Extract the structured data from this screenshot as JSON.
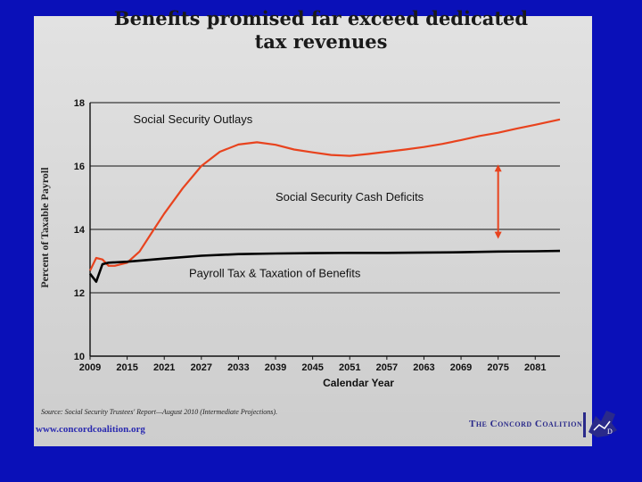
{
  "page": {
    "title_lines": [
      "Benefits promised far exceed dedicated",
      "tax revenues"
    ],
    "source": "Source:  Social Security Trustees' Report—August 2010 (Intermediate Projections).",
    "website": "www.concordcoalition.org",
    "organization": "The Concord Coalition",
    "colors": {
      "background": "#0a10b8",
      "outlays": "#e8431e",
      "revenue": "#000000",
      "arrow": "#e8431e"
    }
  },
  "chart_data": {
    "type": "line",
    "title": "Benefits promised far exceed dedicated tax revenues",
    "xlabel": "Calendar Year",
    "ylabel": "Percent of Taxable Payroll",
    "xlim": [
      2009,
      2085
    ],
    "ylim": [
      10,
      18
    ],
    "xticks": [
      2009,
      2015,
      2021,
      2027,
      2033,
      2039,
      2045,
      2051,
      2057,
      2063,
      2069,
      2075,
      2081
    ],
    "yticks": [
      10,
      12,
      14,
      16,
      18
    ],
    "grid": "horizontal",
    "series": [
      {
        "name": "Social Security Outlays",
        "x": [
          2009,
          2010,
          2011,
          2012,
          2013,
          2015,
          2017,
          2019,
          2021,
          2024,
          2027,
          2030,
          2033,
          2036,
          2039,
          2042,
          2045,
          2048,
          2051,
          2054,
          2057,
          2060,
          2063,
          2066,
          2069,
          2072,
          2075,
          2078,
          2081,
          2085
        ],
        "y": [
          12.7,
          13.1,
          13.05,
          12.85,
          12.85,
          12.95,
          13.3,
          13.9,
          14.5,
          15.3,
          16.0,
          16.45,
          16.68,
          16.75,
          16.67,
          16.52,
          16.43,
          16.35,
          16.32,
          16.38,
          16.45,
          16.52,
          16.6,
          16.7,
          16.82,
          16.95,
          17.05,
          17.18,
          17.3,
          17.47
        ]
      },
      {
        "name": "Payroll Tax & Taxation of Benefits",
        "x": [
          2009,
          2010,
          2011,
          2012,
          2015,
          2021,
          2027,
          2033,
          2039,
          2045,
          2051,
          2057,
          2063,
          2069,
          2075,
          2081,
          2085
        ],
        "y": [
          12.6,
          12.35,
          12.9,
          12.95,
          12.98,
          13.08,
          13.17,
          13.22,
          13.24,
          13.25,
          13.26,
          13.26,
          13.27,
          13.28,
          13.3,
          13.31,
          13.32
        ]
      }
    ],
    "annotations": [
      {
        "text": "Social Security Outlays",
        "x": 2016,
        "y": 17.35
      },
      {
        "text": "Social Security Cash Deficits",
        "x": 2039,
        "y": 14.9
      },
      {
        "text": "Payroll Tax & Taxation of Benefits",
        "x": 2025,
        "y": 12.5
      }
    ],
    "arrow": {
      "x": 2075,
      "y_from": 16.05,
      "y_to": 13.7
    }
  }
}
